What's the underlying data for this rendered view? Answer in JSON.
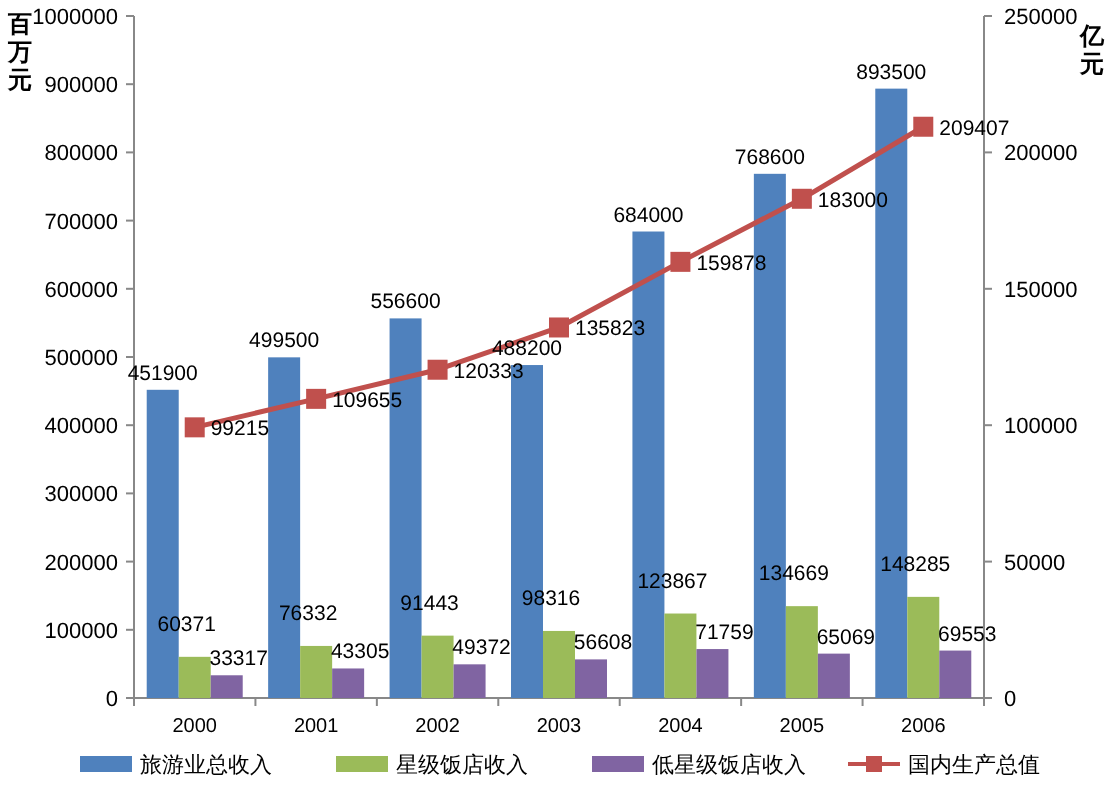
{
  "chart_data": {
    "type": "bar",
    "ylabel": "百万元",
    "y2label": "亿元",
    "categories": [
      "2000",
      "2001",
      "2002",
      "2003",
      "2004",
      "2005",
      "2006"
    ],
    "series": [
      {
        "name": "旅游业总收入",
        "color": "#4f81bd",
        "values": [
          451900,
          499500,
          556600,
          488200,
          684000,
          768600,
          893500
        ]
      },
      {
        "name": "星级饭店收入",
        "color": "#9bbb59",
        "values": [
          60371,
          76332,
          91443,
          98316,
          123867,
          134669,
          148285
        ]
      },
      {
        "name": "低星级饭店收入",
        "color": "#8064a2",
        "values": [
          33317,
          43305,
          49372,
          56608,
          71759,
          65069,
          69553
        ]
      },
      {
        "name": "国内生产总值",
        "type": "line",
        "axis": "y2",
        "color": "#c0504d",
        "values": [
          99215,
          109655,
          120333,
          135823,
          159878,
          183000,
          209407
        ]
      }
    ],
    "ylim": [
      0,
      1000000
    ],
    "yticks": [
      0,
      100000,
      200000,
      300000,
      400000,
      500000,
      600000,
      700000,
      800000,
      900000,
      1000000
    ],
    "y2lim": [
      0,
      250000
    ],
    "y2ticks": [
      0,
      50000,
      100000,
      150000,
      200000,
      250000
    ],
    "data_labels": true,
    "legend": "bottom",
    "marker": "square",
    "line_style": "solid",
    "grid": false
  }
}
